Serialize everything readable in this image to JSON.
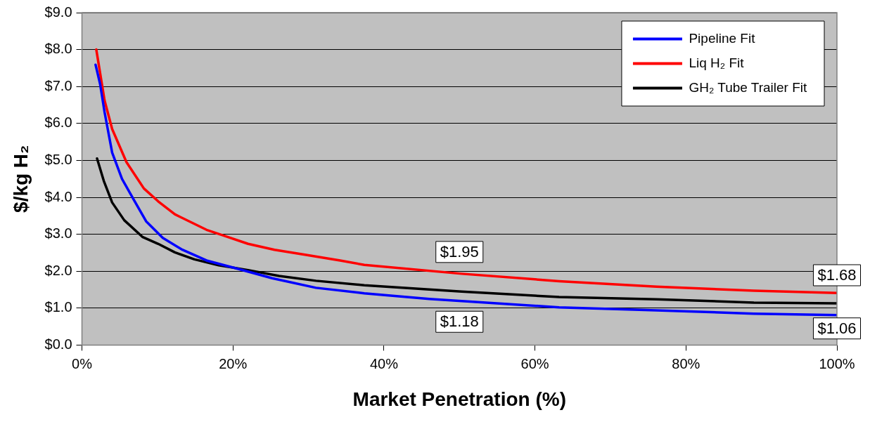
{
  "chart_data": {
    "type": "line",
    "xlabel": "Market Penetration (%)",
    "ylabel": "$/kg H₂",
    "xlim": [
      0,
      100
    ],
    "ylim": [
      0,
      9
    ],
    "xticks": [
      {
        "value": 0,
        "label": "0%"
      },
      {
        "value": 20,
        "label": "20%"
      },
      {
        "value": 40,
        "label": "40%"
      },
      {
        "value": 60,
        "label": "60%"
      },
      {
        "value": 80,
        "label": "80%"
      },
      {
        "value": 100,
        "label": "100%"
      }
    ],
    "yticks": [
      {
        "value": 0,
        "label": "$0.0"
      },
      {
        "value": 1,
        "label": "$1.0"
      },
      {
        "value": 2,
        "label": "$2.0"
      },
      {
        "value": 3,
        "label": "$3.0"
      },
      {
        "value": 4,
        "label": "$4.0"
      },
      {
        "value": 5,
        "label": "$5.0"
      },
      {
        "value": 6,
        "label": "$6.0"
      },
      {
        "value": 7,
        "label": "$7.0"
      },
      {
        "value": 8,
        "label": "$8.0"
      },
      {
        "value": 9,
        "label": "$9.0"
      }
    ],
    "grid": "y",
    "legend": "top right",
    "marker": "none",
    "line_style": "solid",
    "series": [
      {
        "name": "Pipeline Fit",
        "color": "#0000ff",
        "x": [
          1.8,
          2.4,
          3.0,
          4.0,
          5.3,
          6.9,
          8.5,
          10.7,
          13.3,
          16.5,
          20.7,
          25.2,
          31.0,
          37.4,
          46.0,
          50.3,
          63.2,
          76.1,
          89.0,
          100
        ],
        "values": [
          7.59,
          7.07,
          6.3,
          5.21,
          4.5,
          3.92,
          3.35,
          2.9,
          2.58,
          2.29,
          2.06,
          1.81,
          1.55,
          1.4,
          1.25,
          1.19,
          1.02,
          0.94,
          0.85,
          0.81
        ]
      },
      {
        "name": "Liq H₂ Fit",
        "color": "#ff0000",
        "x": [
          1.9,
          3.0,
          4.0,
          5.9,
          8.2,
          10.1,
          12.3,
          16.5,
          18.8,
          22.0,
          25.5,
          29.4,
          34.2,
          37.4,
          50.3,
          63.2,
          76.1,
          89.0,
          100
        ],
        "values": [
          8.0,
          6.62,
          5.85,
          4.95,
          4.24,
          3.89,
          3.54,
          3.12,
          2.96,
          2.74,
          2.58,
          2.45,
          2.29,
          2.17,
          1.93,
          1.73,
          1.58,
          1.47,
          1.41
        ]
      },
      {
        "name": "GH₂ Tube Trailer Fit",
        "color": "#000000",
        "x": [
          2.0,
          2.9,
          4.0,
          5.6,
          8.0,
          10.1,
          12.3,
          14.9,
          18.1,
          22.0,
          26.1,
          31.0,
          37.4,
          50.3,
          63.2,
          76.1,
          89.0,
          100
        ],
        "values": [
          5.05,
          4.44,
          3.86,
          3.38,
          2.93,
          2.74,
          2.51,
          2.32,
          2.16,
          2.03,
          1.87,
          1.74,
          1.62,
          1.45,
          1.3,
          1.24,
          1.15,
          1.13
        ]
      }
    ],
    "annotations": [
      "$1.95",
      "$1.18",
      "$1.68",
      "$1.06"
    ]
  }
}
